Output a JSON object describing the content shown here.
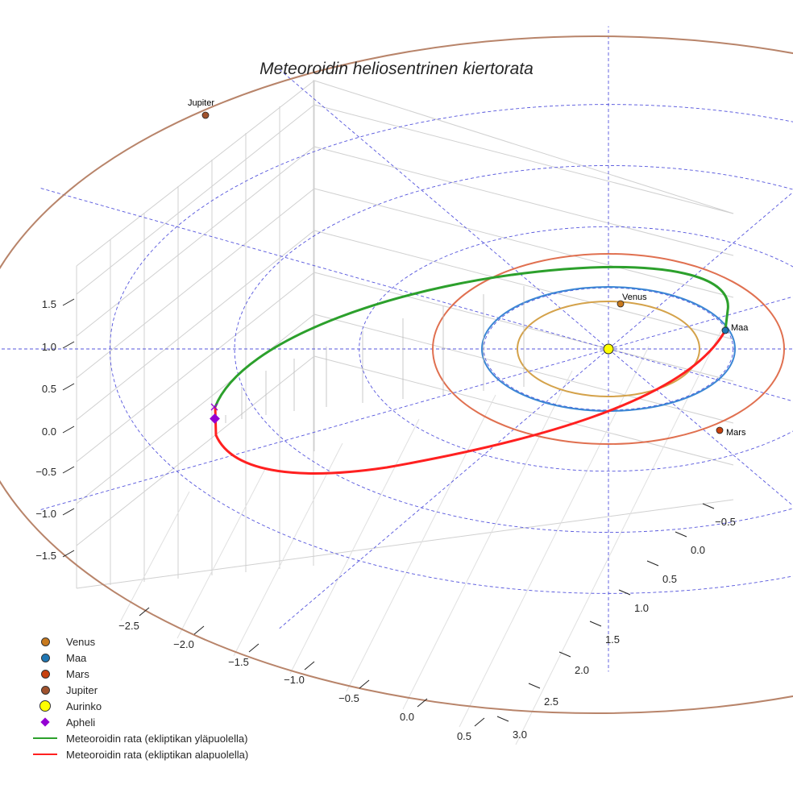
{
  "chart_data": {
    "type": "line",
    "title": "Meteoroidin heliosentrinen kiertorata",
    "axes": {
      "x_ticks": [
        "−2.5",
        "−2.0",
        "−1.5",
        "−1.0",
        "−0.5",
        "0.0",
        "0.5"
      ],
      "y_ticks": [
        "−0.5",
        "0.0",
        "0.5",
        "1.0",
        "1.5",
        "2.0",
        "2.5",
        "3.0"
      ],
      "z_ticks": [
        "1.5",
        "1.0",
        "0.5",
        "0.0",
        "−0.5",
        "−1.0",
        "−1.5"
      ],
      "xlim": [
        -2.8,
        0.7
      ],
      "ylim": [
        -0.7,
        3.1
      ],
      "zlim": [
        -1.8,
        1.8
      ]
    },
    "planets": [
      {
        "name": "Venus",
        "orbit_au": 0.72,
        "color": "#c87a1e",
        "orbit_color": "#d4a24a"
      },
      {
        "name": "Maa",
        "orbit_au": 1.0,
        "color": "#1f77b4",
        "orbit_color": "#3a86d4"
      },
      {
        "name": "Mars",
        "orbit_au": 1.52,
        "color": "#c8410e",
        "orbit_color": "#e07050"
      },
      {
        "name": "Jupiter",
        "orbit_au": 5.2,
        "color": "#a0522d",
        "orbit_color": "#b8846a"
      }
    ],
    "sun": {
      "name": "Aurinko",
      "color": "#ffff00"
    },
    "aphelion": {
      "name": "Apheli",
      "color": "#9400d3"
    },
    "series": [
      {
        "name": "Meteoroidin rata (ekliptikan yläpuolella)",
        "color": "#2ca02c"
      },
      {
        "name": "Meteoroidin rata (ekliptikan alapuolella)",
        "color": "#ff2020"
      }
    ],
    "legend": {
      "placement": "bottom-left",
      "items": [
        "Venus",
        "Maa",
        "Mars",
        "Jupiter",
        "Aurinko",
        "Apheli",
        "Meteoroidin rata (ekliptikan yläpuolella)",
        "Meteoroidin rata (ekliptikan alapuolella)"
      ]
    }
  }
}
